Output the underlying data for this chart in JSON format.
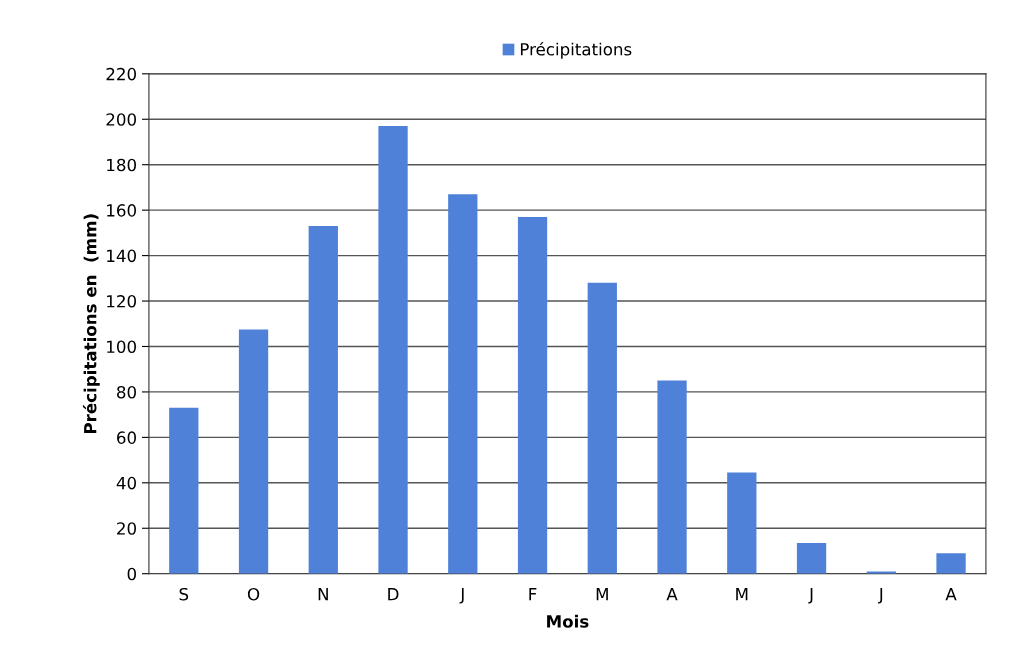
{
  "chart_data": {
    "type": "bar",
    "xlabel": "Mois",
    "ylabel": "Précipitations en  (mm)",
    "categories": [
      "S",
      "O",
      "N",
      "D",
      "J",
      "F",
      "M",
      "A",
      "M",
      "J",
      "J",
      "A"
    ],
    "series": [
      {
        "name": "Précipitations",
        "color": "#4f81d8",
        "values": [
          73,
          107.5,
          153,
          197,
          167,
          157,
          128,
          85,
          44.5,
          13.5,
          1,
          9
        ]
      }
    ],
    "ylim": [
      0,
      220
    ],
    "yticks": [
      0,
      20,
      40,
      60,
      80,
      100,
      120,
      140,
      160,
      180,
      200,
      220
    ],
    "grid": "y",
    "legend": "top"
  }
}
